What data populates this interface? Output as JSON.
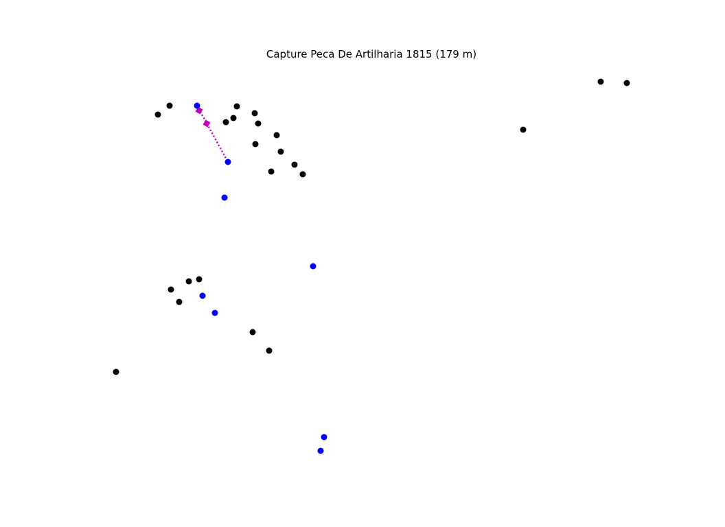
{
  "chart_data": {
    "type": "scatter",
    "title": "Capture Peca De Artilharia 1815 (179 m)",
    "xlabel": "",
    "ylabel": "",
    "grid": false,
    "axes_visible": false,
    "legend": "none",
    "colors": {
      "black_points": "#000000",
      "blue_points": "#0000ff",
      "path": "#bf00bf"
    },
    "series": [
      {
        "points": [
          [
            230,
            167
          ],
          [
            247,
            154
          ],
          [
            329,
            178
          ],
          [
            340,
            172
          ],
          [
            345,
            155
          ],
          [
            371,
            165
          ],
          [
            376,
            180
          ],
          [
            372,
            210
          ],
          [
            403,
            197
          ],
          [
            409,
            221
          ],
          [
            395,
            250
          ],
          [
            429,
            240
          ],
          [
            441,
            254
          ],
          [
            249,
            422
          ],
          [
            275,
            410
          ],
          [
            290,
            407
          ],
          [
            261,
            440
          ],
          [
            368,
            484
          ],
          [
            392,
            511
          ],
          [
            169,
            542
          ],
          [
            762,
            189
          ],
          [
            875,
            119
          ],
          [
            913,
            121
          ]
        ]
      },
      {
        "points": [
          [
            287,
            154
          ],
          [
            332,
            236
          ],
          [
            327,
            288
          ],
          [
            456,
            388
          ],
          [
            295,
            431
          ],
          [
            313,
            456
          ],
          [
            472,
            637
          ],
          [
            467,
            657
          ]
        ]
      },
      {
        "line_style": "dotted",
        "points": [
          [
            287,
            154
          ],
          [
            332,
            236
          ]
        ],
        "square_markers": [
          [
            290,
            161
          ],
          [
            301,
            180
          ]
        ]
      }
    ]
  }
}
